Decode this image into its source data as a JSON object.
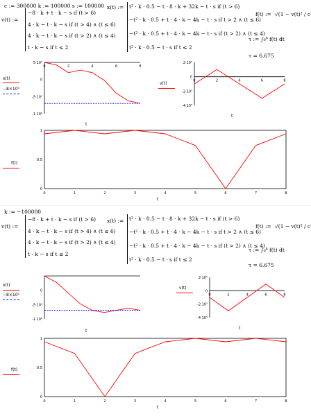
{
  "section1": {
    "constants": "c := 300000   k := 100000   s := 100000",
    "v_name": "v(t) :=",
    "v_cases": [
      "−8 · k + t · k − s  if  (t > 6)",
      "4 · k − t · k − s  if  (t > 4) ∧ (t ≤ 6)",
      "4 · k − t · k − s  if  (t > 2) ∧ (t ≤ 4)",
      "t · k − s  if  t ≤ 2"
    ],
    "x_name": "x(t) :=",
    "x_cases": [
      "t² · k · 0.5 − t · 8 · k + 32k − t · s  if  (t > 6)",
      "−t² · k · 0.5 + t · 4 · k − 4k − t · s  if  t > 2 ∧ (t ≤ 6)",
      "−t² · k · 0.5 + t · 4 · k − 4k − t · s  if  (t > 2) ∧ (t ≤ 4)",
      "t² · k · 0.5 − t · s  if  t ≤ 2"
    ],
    "f_def": "f(t) :=",
    "f_expr": "√(1 − v(t)² / c²)",
    "tau_def": "τ := ∫₀⁸ f(t) dt",
    "tau_result": "τ = 6.675"
  },
  "section2": {
    "constants": "k := −100000",
    "v_name": "v(t) :=",
    "v_cases": [
      "−8 · k + t · k − s  if  (t > 6)",
      "4 · k − t · k − s  if  (t > 4) ∧ (t ≤ 6)",
      "4 · k − t · k − s  if  (t > 2) ∧ (t ≤ 4)",
      "t · k − s  if  t ≤ 2"
    ],
    "x_name": "x(t) :=",
    "x_cases": [
      "t² · k · 0.5 − t · 8 · k + 32k − t · s  if  (t > 6)",
      "−t² · k · 0.5 + t · 4 · k − 4k − t · s  if  t > 2 ∧ (t ≤ 6)",
      "−t² · k · 0.5 + t · 4 · k − 4k − t · s  if  (t > 2) ∧ (t ≤ 4)",
      "t² · k · 0.5 − t · s  if  t ≤ 2"
    ],
    "f_def": "f(t) :=",
    "f_expr": "√(1 − v(t)² / c²)",
    "tau_def": "τ := ∫₀⁸ f(t) dt",
    "tau_result": "τ = 6.675"
  },
  "colors": {
    "trace": "#ff0000",
    "marker": "#0000ff",
    "axis": "#000000"
  },
  "chart_data": [
    {
      "id": "x1",
      "type": "line",
      "xlabel": "t",
      "series": [
        {
          "name": "x(t)",
          "x": [
            0,
            1,
            2,
            3,
            4,
            5,
            6,
            7,
            8
          ],
          "y": [
            0,
            -50000,
            -200000,
            -150000,
            -200000,
            -350000,
            -600000,
            -750000,
            -800000
          ]
        },
        {
          "name": "−8×10⁵",
          "x": [
            0,
            8
          ],
          "y": [
            -800000,
            -800000
          ]
        }
      ],
      "xlim": [
        0,
        8
      ],
      "ylim": [
        -1000000,
        0
      ],
      "yticks": [
        "5·10⁵ ",
        "0",
        "-5·10⁵",
        "-1·10⁶"
      ],
      "xticks": [
        "0",
        "2",
        "4",
        "6",
        "8"
      ],
      "series_label": "x(t)",
      "marker_label": "−8×10⁵"
    },
    {
      "id": "v1",
      "type": "line",
      "xlabel": "t",
      "series": [
        {
          "name": "v(t)",
          "x": [
            0,
            2,
            6,
            8
          ],
          "y": [
            -100000,
            100000,
            -300000,
            -100000
          ]
        }
      ],
      "xlim": [
        0,
        8
      ],
      "ylim": [
        -400000,
        200000
      ],
      "yticks": [
        "2·10⁵",
        "0",
        "-2·10⁵",
        "-4·10⁵"
      ],
      "xticks": [
        "0",
        "2",
        "4",
        "6",
        "8"
      ],
      "series_label": "v(t)"
    },
    {
      "id": "f1",
      "type": "line",
      "xlabel": "t",
      "series": [
        {
          "name": "f(t)",
          "x": [
            0,
            1,
            2,
            3,
            4,
            5,
            6,
            7,
            8
          ],
          "y": [
            0.94,
            1.0,
            0.94,
            1.0,
            0.94,
            0.74,
            0,
            0.74,
            0.94
          ]
        }
      ],
      "xlim": [
        0,
        8
      ],
      "ylim": [
        0,
        1
      ],
      "yticks": [
        "1",
        "0.5",
        "0"
      ],
      "xticks": [
        "0",
        "1",
        "2",
        "3",
        "4",
        "5",
        "6",
        "7",
        "8"
      ],
      "series_label": "f(t)"
    },
    {
      "id": "x2",
      "type": "line",
      "xlabel": "t",
      "series": [
        {
          "name": "x(t)",
          "x": [
            0,
            1,
            2,
            3,
            4,
            5,
            6,
            7,
            8
          ],
          "y": [
            0,
            -150000,
            -400000,
            -650000,
            -800000,
            -850000,
            -800000,
            -750000,
            -800000
          ]
        },
        {
          "name": "−8×10⁵",
          "x": [
            0,
            8
          ],
          "y": [
            -800000,
            -800000
          ]
        }
      ],
      "xlim": [
        0,
        8
      ],
      "ylim": [
        -1000000,
        0
      ],
      "yticks": [
        "",
        "0",
        "-5·10⁵",
        "-1·10⁶"
      ],
      "xticks": [],
      "series_label": "x(t)",
      "marker_label": "−8×10⁵"
    },
    {
      "id": "v2",
      "type": "line",
      "xlabel": "t",
      "series": [
        {
          "name": "v(t)",
          "x": [
            0,
            2,
            6,
            8
          ],
          "y": [
            -100000,
            -300000,
            100000,
            -100000
          ]
        }
      ],
      "xlim": [
        0,
        8
      ],
      "ylim": [
        -400000,
        200000
      ],
      "yticks": [
        "2·10⁵",
        "0",
        "-2·10⁵",
        "-4·10⁵"
      ],
      "xticks": [
        "0",
        "2",
        "4",
        "6",
        "8"
      ],
      "series_label": "v(t)"
    },
    {
      "id": "f2",
      "type": "line",
      "xlabel": "t",
      "series": [
        {
          "name": "f(t)",
          "x": [
            0,
            1,
            2,
            3,
            4,
            5,
            6,
            7,
            8
          ],
          "y": [
            0.94,
            0.74,
            0,
            0.74,
            0.94,
            1.0,
            0.94,
            1.0,
            0.94
          ]
        }
      ],
      "xlim": [
        0,
        8
      ],
      "ylim": [
        0,
        1
      ],
      "yticks": [
        "1",
        "0.5",
        "0"
      ],
      "xticks": [
        "0",
        "1",
        "2",
        "3",
        "4",
        "5",
        "6",
        "7",
        "8"
      ],
      "series_label": "f(t)"
    }
  ]
}
